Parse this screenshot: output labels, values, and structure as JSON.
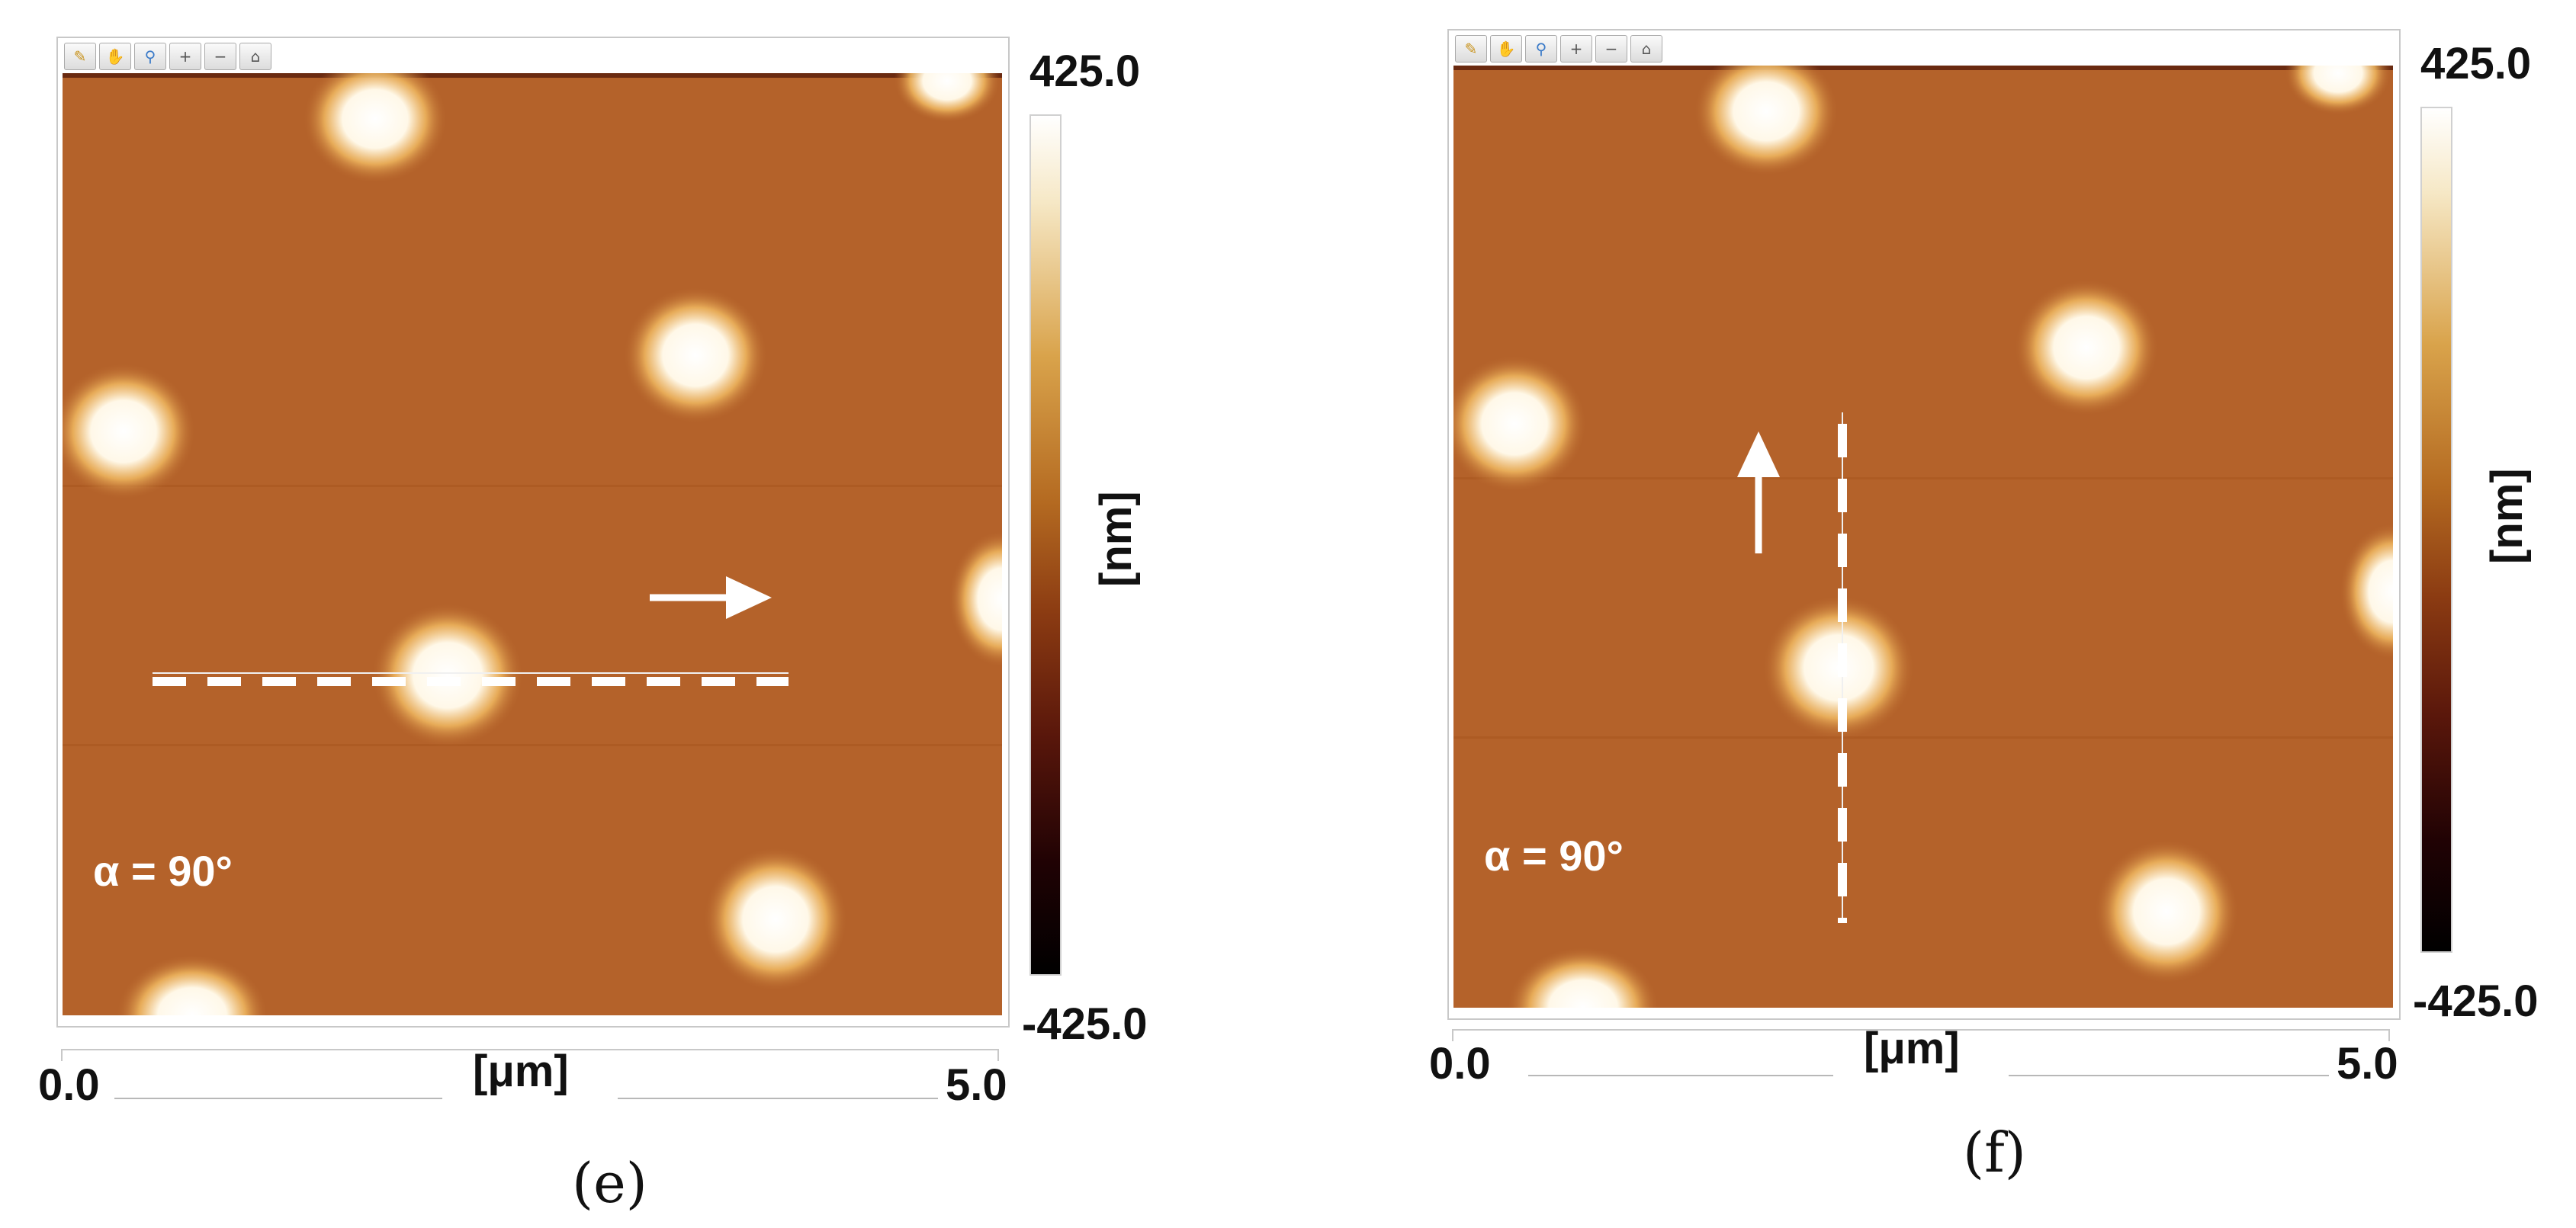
{
  "toolbar_icons": [
    "ruler-icon",
    "pan-icon",
    "zoom-icon",
    "zoom-in-icon",
    "zoom-out-icon",
    "home-icon"
  ],
  "panels": [
    {
      "id": "e",
      "caption": "(e)",
      "alpha": "α = 90°",
      "colorbar": {
        "max": "425.0",
        "min": "-425.0",
        "unit": "[nm]"
      },
      "xaxis": {
        "min": "0.0",
        "max": "5.0",
        "unit": "[μm]"
      },
      "arrow_direction": "right",
      "profile_line": "horizontal"
    },
    {
      "id": "f",
      "caption": "(f)",
      "alpha": "α = 90°",
      "colorbar": {
        "max": "425.0",
        "min": "-425.0",
        "unit": "[nm]"
      },
      "xaxis": {
        "min": "0.0",
        "max": "5.0",
        "unit": "[μm]"
      },
      "arrow_direction": "up",
      "profile_line": "vertical"
    }
  ],
  "colors": {
    "substrate": "#b4622a",
    "peak": "#ffffff"
  }
}
